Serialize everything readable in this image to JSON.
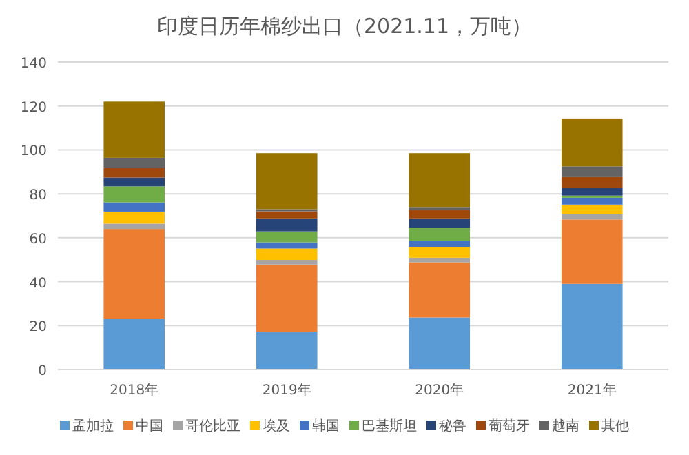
{
  "chart_data": {
    "type": "bar",
    "title": "印度日历年棉纱出口（2021.11，万吨）",
    "stacked": true,
    "categories": [
      "2018年",
      "2019年",
      "2020年",
      "2021年"
    ],
    "series": [
      {
        "name": "孟加拉",
        "color": "#5b9bd5",
        "values": [
          23.1,
          17.0,
          23.7,
          39.0
        ]
      },
      {
        "name": "中国",
        "color": "#ed7d31",
        "values": [
          40.9,
          30.8,
          25.1,
          29.3
        ]
      },
      {
        "name": "哥伦比亚",
        "color": "#a5a5a5",
        "values": [
          2.4,
          2.1,
          2.1,
          2.6
        ]
      },
      {
        "name": "埃及",
        "color": "#ffc000",
        "values": [
          5.5,
          5.2,
          4.9,
          4.2
        ]
      },
      {
        "name": "韩国",
        "color": "#4472c4",
        "values": [
          4.2,
          2.8,
          2.9,
          3.1
        ]
      },
      {
        "name": "巴基斯坦",
        "color": "#70ad47",
        "values": [
          7.3,
          5.0,
          5.9,
          1.0
        ]
      },
      {
        "name": "秘鲁",
        "color": "#264478",
        "values": [
          4.0,
          5.9,
          4.2,
          3.6
        ]
      },
      {
        "name": "葡萄牙",
        "color": "#9e480e",
        "values": [
          4.4,
          3.2,
          3.7,
          4.8
        ]
      },
      {
        "name": "越南",
        "color": "#636363",
        "values": [
          4.6,
          1.0,
          1.5,
          4.9
        ]
      },
      {
        "name": "其他",
        "color": "#997300",
        "values": [
          25.6,
          25.5,
          24.5,
          21.8
        ]
      }
    ],
    "ylim": [
      0,
      140
    ],
    "yticks": [
      0,
      20,
      40,
      60,
      80,
      100,
      120,
      140
    ],
    "grid": "y",
    "legend": "bottom"
  }
}
